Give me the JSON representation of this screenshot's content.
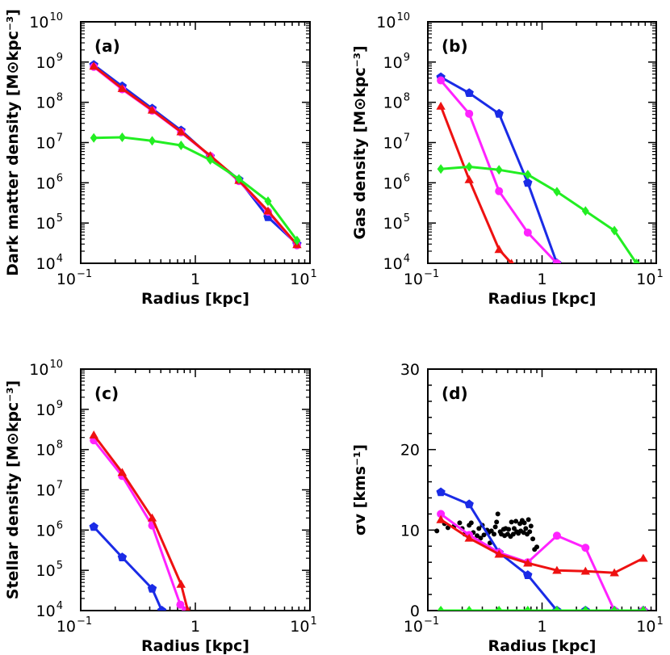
{
  "colors": {
    "blue": "#1a2be6",
    "red": "#ee1111",
    "magenta": "#ff22ff",
    "green": "#22ee22",
    "black": "#000000"
  },
  "chart_data": [
    {
      "type": "line",
      "panel": "(a)",
      "xscale": "log",
      "yscale": "log",
      "xlim": [
        0.1,
        10
      ],
      "ylim": [
        10000,
        10000000000
      ],
      "xlabel": "Radius [kpc]",
      "ylabel": "Dark matter density [M⊙kpc⁻³]",
      "series": [
        {
          "color": "blue",
          "marker": "pentagon",
          "x": [
            0.13,
            0.23,
            0.42,
            0.75,
            1.35,
            2.4,
            4.3,
            7.7
          ],
          "y": [
            850000000,
            250000000,
            70000000,
            20000000,
            4500000,
            1200000,
            140000,
            30000
          ]
        },
        {
          "color": "magenta",
          "marker": "circle",
          "x": [
            0.13,
            0.23,
            0.42,
            0.75,
            1.35,
            2.4,
            4.3,
            7.7
          ],
          "y": [
            760000000,
            210000000,
            62000000,
            18000000,
            4600000,
            1100000,
            190000,
            28000
          ]
        },
        {
          "color": "red",
          "marker": "triangle",
          "x": [
            0.13,
            0.23,
            0.42,
            0.75,
            1.35,
            2.4,
            4.3,
            7.7
          ],
          "y": [
            790000000,
            220000000,
            64000000,
            18500000,
            4700000,
            1150000,
            200000,
            29000
          ]
        },
        {
          "color": "green",
          "marker": "diamond",
          "x": [
            0.13,
            0.23,
            0.42,
            0.75,
            1.35,
            2.4,
            4.3,
            7.7
          ],
          "y": [
            13000000,
            13500000,
            11000000,
            8500000,
            3700000,
            1250000,
            350000,
            37000
          ]
        }
      ]
    },
    {
      "type": "line",
      "panel": "(b)",
      "xscale": "log",
      "yscale": "log",
      "xlim": [
        0.1,
        10
      ],
      "ylim": [
        10000,
        10000000000
      ],
      "xlabel": "Radius [kpc]",
      "ylabel": "Gas density [M⊙kpc⁻³]",
      "series": [
        {
          "color": "blue",
          "marker": "pentagon",
          "x": [
            0.13,
            0.23,
            0.42,
            0.75,
            1.35
          ],
          "y": [
            420000000,
            170000000,
            52000000,
            1000000,
            10000
          ]
        },
        {
          "color": "magenta",
          "marker": "circle",
          "x": [
            0.13,
            0.23,
            0.42,
            0.75,
            1.35
          ],
          "y": [
            350000000,
            52000000,
            620000,
            58000,
            10000
          ]
        },
        {
          "color": "red",
          "marker": "triangle",
          "x": [
            0.13,
            0.23,
            0.42,
            0.54
          ],
          "y": [
            80000000,
            1200000,
            22000,
            10000
          ]
        },
        {
          "color": "green",
          "marker": "diamond",
          "x": [
            0.13,
            0.23,
            0.42,
            0.75,
            1.35,
            2.4,
            4.3,
            6.7
          ],
          "y": [
            2200000,
            2500000,
            2100000,
            1600000,
            600000,
            200000,
            65000,
            10000
          ]
        }
      ]
    },
    {
      "type": "line",
      "panel": "(c)",
      "xscale": "log",
      "yscale": "log",
      "xlim": [
        0.1,
        10
      ],
      "ylim": [
        10000,
        10000000000
      ],
      "xlabel": "Radius [kpc]",
      "ylabel": "Stellar density [M⊙kpc⁻³]",
      "series": [
        {
          "color": "blue",
          "marker": "pentagon",
          "x": [
            0.13,
            0.23,
            0.42,
            0.51
          ],
          "y": [
            1200000,
            210000,
            35000,
            10000
          ]
        },
        {
          "color": "magenta",
          "marker": "circle",
          "x": [
            0.13,
            0.23,
            0.42,
            0.74,
            0.82
          ],
          "y": [
            170000000,
            22000000,
            1300000,
            14000,
            10000
          ]
        },
        {
          "color": "red",
          "marker": "triangle",
          "x": [
            0.13,
            0.23,
            0.42,
            0.75,
            0.86
          ],
          "y": [
            230000000,
            27000000,
            2000000,
            45000,
            10000
          ]
        }
      ]
    },
    {
      "type": "line",
      "panel": "(d)",
      "xscale": "log",
      "yscale": "linear",
      "xlim": [
        0.1,
        10
      ],
      "ylim": [
        0,
        30
      ],
      "xlabel": "Radius [kpc]",
      "ylabel": "σv [kms⁻¹]",
      "series": [
        {
          "color": "blue",
          "marker": "pentagon",
          "x": [
            0.13,
            0.23,
            0.42,
            0.75,
            1.35,
            2.4,
            4.3,
            7.7
          ],
          "y": [
            14.7,
            13.2,
            7.2,
            4.4,
            0,
            0,
            0,
            0
          ]
        },
        {
          "color": "magenta",
          "marker": "circle",
          "x": [
            0.13,
            0.23,
            0.42,
            0.75,
            1.35,
            2.4,
            4.3,
            7.7
          ],
          "y": [
            12.0,
            9.4,
            7.2,
            6.0,
            9.3,
            7.8,
            0,
            0
          ]
        },
        {
          "color": "red",
          "marker": "triangle",
          "x": [
            0.13,
            0.23,
            0.42,
            0.75,
            1.35,
            2.4,
            4.3,
            7.7
          ],
          "y": [
            11.3,
            9.0,
            7.0,
            5.9,
            5.0,
            4.9,
            4.7,
            6.5
          ]
        },
        {
          "color": "green",
          "marker": "diamond",
          "x": [
            0.13,
            0.23,
            0.42,
            0.75,
            1.35,
            2.4,
            4.3,
            7.7
          ],
          "y": [
            0,
            0,
            0,
            0,
            0,
            0,
            0,
            0
          ]
        }
      ],
      "observed_points": {
        "color": "black",
        "marker": "dot",
        "x": [
          0.12,
          0.14,
          0.15,
          0.17,
          0.19,
          0.2,
          0.21,
          0.23,
          0.24,
          0.25,
          0.27,
          0.28,
          0.29,
          0.3,
          0.31,
          0.33,
          0.34,
          0.35,
          0.36,
          0.38,
          0.39,
          0.4,
          0.41,
          0.43,
          0.44,
          0.46,
          0.47,
          0.48,
          0.5,
          0.51,
          0.53,
          0.54,
          0.56,
          0.57,
          0.59,
          0.6,
          0.62,
          0.64,
          0.65,
          0.67,
          0.69,
          0.7,
          0.72,
          0.74,
          0.76,
          0.78,
          0.8,
          0.83,
          0.86,
          0.9
        ],
        "y": [
          9.9,
          10.8,
          10.3,
          10.5,
          10.9,
          10.2,
          9.5,
          10.6,
          10.9,
          9.7,
          9.3,
          10.2,
          9.0,
          10.6,
          9.4,
          10.0,
          9.7,
          8.4,
          9.9,
          9.5,
          10.4,
          11.0,
          12.0,
          9.8,
          9.5,
          10.1,
          9.3,
          10.2,
          9.5,
          10.1,
          9.2,
          11.0,
          9.5,
          10.2,
          11.1,
          9.8,
          9.6,
          10.8,
          9.9,
          11.2,
          9.7,
          10.9,
          10.2,
          9.5,
          11.3,
          9.8,
          10.5,
          8.9,
          7.6,
          7.9
        ]
      }
    }
  ]
}
